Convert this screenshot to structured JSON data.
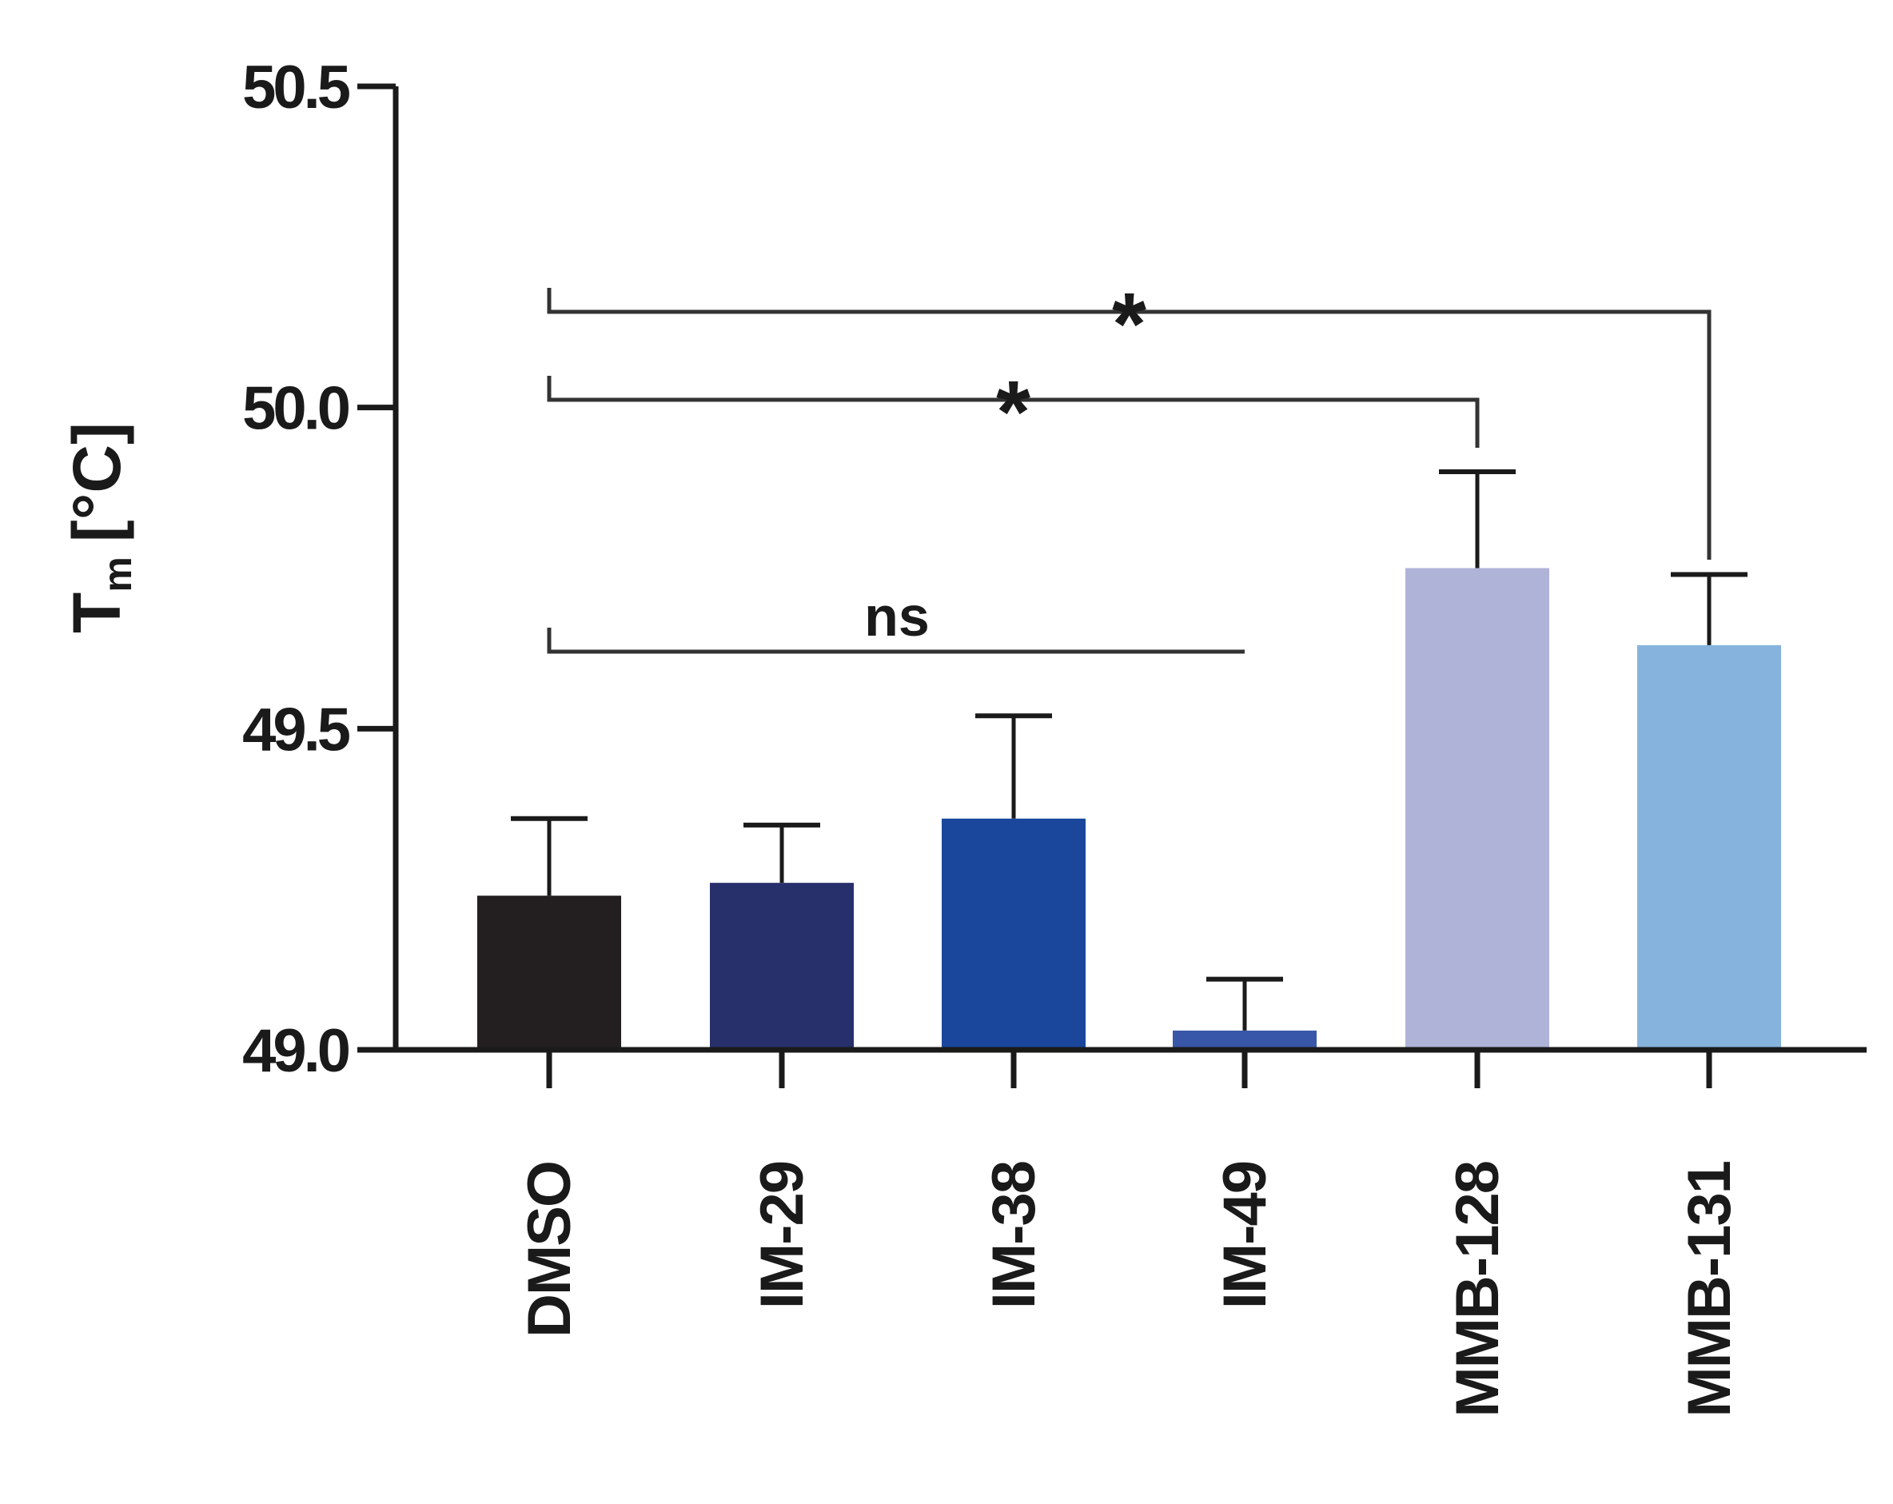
{
  "chart_data": {
    "type": "bar",
    "title": "",
    "xlabel": "",
    "ylabel": "T",
    "ylabel_subscript": "m",
    "ylabel_unit": "[°C]",
    "ylim": [
      49.0,
      50.5
    ],
    "yticks": [
      49.0,
      49.5,
      50.0,
      50.5
    ],
    "ytick_labels": [
      "49.0",
      "49.5",
      "50.0",
      "50.5"
    ],
    "grid": false,
    "categories": [
      "DMSO",
      "IM-29",
      "IM-38",
      "IM-49",
      "MMB-128",
      "MMB-131"
    ],
    "values": [
      49.24,
      49.26,
      49.36,
      49.03,
      49.75,
      49.63
    ],
    "errors": [
      0.12,
      0.09,
      0.16,
      0.08,
      0.15,
      0.11
    ],
    "colors": [
      "#231f20",
      "#27306b",
      "#1a479c",
      "#3857a8",
      "#b0b3d8",
      "#86b3dd"
    ],
    "significance": [
      {
        "from": "DMSO",
        "to": "IM-49",
        "label": "ns"
      },
      {
        "from": "DMSO",
        "to": "MMB-128",
        "label": "*"
      },
      {
        "from": "DMSO",
        "to": "MMB-131",
        "label": "*"
      }
    ]
  }
}
